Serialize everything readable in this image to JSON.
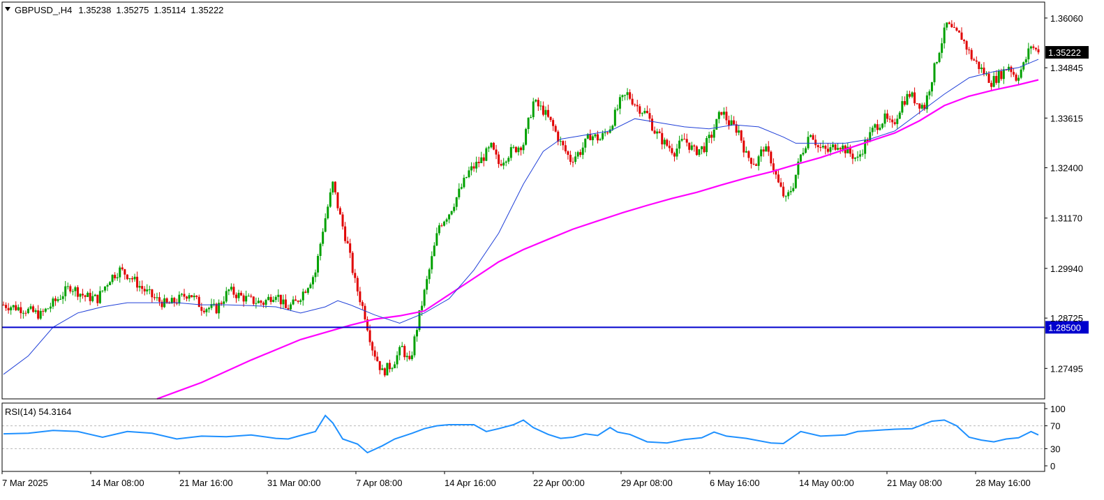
{
  "chart_data": {
    "type": "candlestick",
    "symbol_label": "GBPUSD_,H4",
    "ohlc_header": [
      "1.35238",
      "1.35275",
      "1.35114",
      "1.35222"
    ],
    "y_ticks": [
      "1.36060",
      "1.34845",
      "1.33615",
      "1.32400",
      "1.31170",
      "1.29940",
      "1.28725",
      "1.27495"
    ],
    "ylim": [
      1.2675,
      1.3645
    ],
    "current_price": {
      "label": "1.35222",
      "value": 1.35222,
      "color": "#000000"
    },
    "horizontal_line": {
      "label": "1.28500",
      "value": 1.285,
      "color": "#0000cd"
    },
    "x_labels": [
      "7 Mar 2025",
      "14 Mar 08:00",
      "21 Mar 16:00",
      "31 Mar 00:00",
      "7 Apr 08:00",
      "14 Apr 16:00",
      "22 Apr 00:00",
      "29 Apr 08:00",
      "6 May 16:00",
      "14 May 00:00",
      "21 May 08:00",
      "28 May 16:00"
    ],
    "bull_color": "#00a000",
    "bear_color": "#e00000",
    "close_path": [
      [
        0,
        1.2905
      ],
      [
        8,
        1.2895
      ],
      [
        15,
        1.288
      ],
      [
        22,
        1.292
      ],
      [
        27,
        1.295
      ],
      [
        33,
        1.2925
      ],
      [
        38,
        1.292
      ],
      [
        43,
        1.297
      ],
      [
        47,
        1.299
      ],
      [
        51,
        1.2975
      ],
      [
        56,
        1.2945
      ],
      [
        61,
        1.292
      ],
      [
        66,
        1.2905
      ],
      [
        70,
        1.2915
      ],
      [
        75,
        1.2935
      ],
      [
        80,
        1.29
      ],
      [
        86,
        1.2895
      ],
      [
        91,
        1.294
      ],
      [
        96,
        1.2925
      ],
      [
        100,
        1.2915
      ],
      [
        105,
        1.291
      ],
      [
        110,
        1.2935
      ],
      [
        114,
        1.2895
      ],
      [
        118,
        1.291
      ],
      [
        122,
        1.2945
      ],
      [
        126,
        1.2985
      ],
      [
        129,
        1.309
      ],
      [
        133,
        1.32
      ],
      [
        136,
        1.312
      ],
      [
        139,
        1.305
      ],
      [
        142,
        1.296
      ],
      [
        146,
        1.288
      ],
      [
        149,
        1.28
      ],
      [
        153,
        1.274
      ],
      [
        157,
        1.276
      ],
      [
        161,
        1.28
      ],
      [
        164,
        1.276
      ],
      [
        168,
        1.288
      ],
      [
        172,
        1.299
      ],
      [
        176,
        1.31
      ],
      [
        180,
        1.313
      ],
      [
        184,
        1.318
      ],
      [
        188,
        1.323
      ],
      [
        193,
        1.326
      ],
      [
        197,
        1.329
      ],
      [
        200,
        1.325
      ],
      [
        205,
        1.328
      ],
      [
        210,
        1.33
      ],
      [
        214,
        1.34
      ],
      [
        218,
        1.338
      ],
      [
        222,
        1.334
      ],
      [
        225,
        1.33
      ],
      [
        229,
        1.326
      ],
      [
        233,
        1.328
      ],
      [
        237,
        1.332
      ],
      [
        241,
        1.331
      ],
      [
        245,
        1.334
      ],
      [
        249,
        1.34
      ],
      [
        252,
        1.342
      ],
      [
        256,
        1.339
      ],
      [
        260,
        1.337
      ],
      [
        263,
        1.333
      ],
      [
        267,
        1.33
      ],
      [
        271,
        1.328
      ],
      [
        275,
        1.331
      ],
      [
        279,
        1.328
      ],
      [
        283,
        1.329
      ],
      [
        286,
        1.332
      ],
      [
        290,
        1.338
      ],
      [
        293,
        1.335
      ],
      [
        297,
        1.333
      ],
      [
        300,
        1.327
      ],
      [
        304,
        1.325
      ],
      [
        307,
        1.329
      ],
      [
        310,
        1.326
      ],
      [
        313,
        1.32
      ],
      [
        316,
        1.316
      ],
      [
        319,
        1.32
      ],
      [
        322,
        1.327
      ],
      [
        326,
        1.333
      ],
      [
        329,
        1.329
      ],
      [
        333,
        1.328
      ],
      [
        337,
        1.33
      ],
      [
        341,
        1.328
      ],
      [
        345,
        1.326
      ],
      [
        348,
        1.33
      ],
      [
        352,
        1.334
      ],
      [
        356,
        1.336
      ],
      [
        359,
        1.334
      ],
      [
        363,
        1.34
      ],
      [
        366,
        1.342
      ],
      [
        369,
        1.34
      ],
      [
        372,
        1.339
      ],
      [
        375,
        1.346
      ],
      [
        378,
        1.353
      ],
      [
        381,
        1.359
      ],
      [
        384,
        1.357
      ],
      [
        387,
        1.356
      ],
      [
        391,
        1.351
      ],
      [
        395,
        1.348
      ],
      [
        399,
        1.345
      ],
      [
        403,
        1.347
      ],
      [
        406,
        1.349
      ],
      [
        409,
        1.346
      ],
      [
        412,
        1.349
      ],
      [
        415,
        1.354
      ],
      [
        418,
        1.352
      ]
    ],
    "ma_blue": [
      [
        0,
        1.2735
      ],
      [
        10,
        1.278
      ],
      [
        20,
        1.285
      ],
      [
        30,
        1.2885
      ],
      [
        40,
        1.29
      ],
      [
        50,
        1.291
      ],
      [
        60,
        1.291
      ],
      [
        70,
        1.291
      ],
      [
        80,
        1.2905
      ],
      [
        90,
        1.2905
      ],
      [
        100,
        1.2903
      ],
      [
        110,
        1.29
      ],
      [
        120,
        1.2885
      ],
      [
        130,
        1.29
      ],
      [
        135,
        1.2915
      ],
      [
        140,
        1.2905
      ],
      [
        150,
        1.288
      ],
      [
        160,
        1.286
      ],
      [
        170,
        1.2885
      ],
      [
        180,
        1.292
      ],
      [
        190,
        1.299
      ],
      [
        200,
        1.308
      ],
      [
        210,
        1.32
      ],
      [
        218,
        1.328
      ],
      [
        225,
        1.331
      ],
      [
        235,
        1.332
      ],
      [
        245,
        1.333
      ],
      [
        255,
        1.336
      ],
      [
        265,
        1.335
      ],
      [
        275,
        1.334
      ],
      [
        285,
        1.3335
      ],
      [
        295,
        1.3345
      ],
      [
        305,
        1.334
      ],
      [
        315,
        1.3315
      ],
      [
        320,
        1.33
      ],
      [
        330,
        1.33
      ],
      [
        340,
        1.33
      ],
      [
        350,
        1.331
      ],
      [
        360,
        1.333
      ],
      [
        370,
        1.3375
      ],
      [
        380,
        1.342
      ],
      [
        390,
        1.346
      ],
      [
        400,
        1.3475
      ],
      [
        410,
        1.3485
      ],
      [
        418,
        1.3505
      ]
    ],
    "ma_magenta": [
      [
        62,
        1.2675
      ],
      [
        80,
        1.2715
      ],
      [
        100,
        1.277
      ],
      [
        120,
        1.282
      ],
      [
        140,
        1.2855
      ],
      [
        150,
        1.287
      ],
      [
        160,
        1.2878
      ],
      [
        170,
        1.289
      ],
      [
        180,
        1.293
      ],
      [
        190,
        1.297
      ],
      [
        200,
        1.301
      ],
      [
        210,
        1.304
      ],
      [
        220,
        1.3065
      ],
      [
        230,
        1.309
      ],
      [
        240,
        1.311
      ],
      [
        250,
        1.313
      ],
      [
        260,
        1.3148
      ],
      [
        270,
        1.3165
      ],
      [
        280,
        1.318
      ],
      [
        290,
        1.3198
      ],
      [
        300,
        1.3215
      ],
      [
        310,
        1.323
      ],
      [
        320,
        1.3248
      ],
      [
        330,
        1.3265
      ],
      [
        340,
        1.3285
      ],
      [
        350,
        1.3305
      ],
      [
        360,
        1.3325
      ],
      [
        370,
        1.3355
      ],
      [
        380,
        1.3392
      ],
      [
        390,
        1.3415
      ],
      [
        400,
        1.343
      ],
      [
        410,
        1.3443
      ],
      [
        418,
        1.3455
      ]
    ],
    "rsi": {
      "label": "RSI(14) 54.3164",
      "ticks": [
        "100",
        "70",
        "30",
        "0"
      ],
      "levels": [
        70,
        30
      ],
      "ylim": [
        0,
        100
      ],
      "color": "#1e90ff",
      "path": [
        [
          0,
          56
        ],
        [
          10,
          57
        ],
        [
          20,
          62
        ],
        [
          30,
          60
        ],
        [
          40,
          50
        ],
        [
          50,
          60
        ],
        [
          60,
          57
        ],
        [
          70,
          47
        ],
        [
          80,
          52
        ],
        [
          90,
          51
        ],
        [
          100,
          54
        ],
        [
          110,
          48
        ],
        [
          115,
          47
        ],
        [
          120,
          53
        ],
        [
          126,
          60
        ],
        [
          130,
          88
        ],
        [
          133,
          75
        ],
        [
          137,
          47
        ],
        [
          143,
          38
        ],
        [
          147,
          23
        ],
        [
          153,
          35
        ],
        [
          158,
          47
        ],
        [
          165,
          57
        ],
        [
          170,
          65
        ],
        [
          175,
          70
        ],
        [
          180,
          72
        ],
        [
          190,
          72
        ],
        [
          195,
          60
        ],
        [
          200,
          65
        ],
        [
          206,
          72
        ],
        [
          210,
          80
        ],
        [
          214,
          67
        ],
        [
          220,
          55
        ],
        [
          225,
          48
        ],
        [
          230,
          50
        ],
        [
          235,
          56
        ],
        [
          240,
          53
        ],
        [
          245,
          67
        ],
        [
          248,
          59
        ],
        [
          253,
          55
        ],
        [
          260,
          42
        ],
        [
          268,
          40
        ],
        [
          275,
          46
        ],
        [
          282,
          49
        ],
        [
          287,
          59
        ],
        [
          292,
          52
        ],
        [
          300,
          48
        ],
        [
          310,
          40
        ],
        [
          315,
          39
        ],
        [
          322,
          60
        ],
        [
          330,
          52
        ],
        [
          340,
          54
        ],
        [
          345,
          60
        ],
        [
          352,
          62
        ],
        [
          360,
          64
        ],
        [
          367,
          65
        ],
        [
          375,
          78
        ],
        [
          380,
          80
        ],
        [
          385,
          70
        ],
        [
          390,
          50
        ],
        [
          395,
          45
        ],
        [
          400,
          42
        ],
        [
          405,
          47
        ],
        [
          410,
          49
        ],
        [
          415,
          60
        ],
        [
          418,
          54
        ]
      ]
    }
  }
}
